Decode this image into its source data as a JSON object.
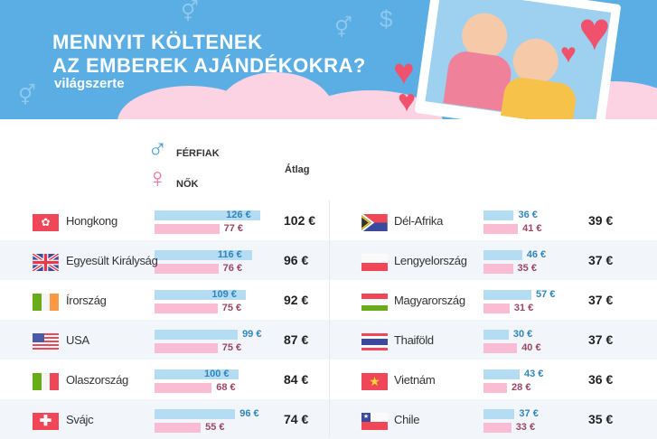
{
  "header": {
    "title_line1": "MENNYIT KÖLTENEK",
    "title_line2": "AZ EMBEREK AJÁNDÉKOKRA?",
    "subtitle": "világszerte"
  },
  "legend": {
    "male": "FÉRFIAK",
    "female": "NŐK",
    "average": "Átlag",
    "male_symbol": "♂",
    "female_symbol": "♀"
  },
  "colors": {
    "male": "#b4dcf2",
    "female": "#f9bcd2",
    "banner": "#5aaee4"
  },
  "chart_data": {
    "type": "bar",
    "title": "MENNYIT KÖLTENEK AZ EMBEREK AJÁNDÉKOKRA? világszerte",
    "unit": "€",
    "series_names": [
      "FÉRFIAK",
      "NŐK",
      "Átlag"
    ],
    "rows": [
      {
        "country": "Hongkong",
        "flag": "hk",
        "male": 126,
        "female": 77,
        "avg": 102,
        "male_label": "126 €",
        "female_label": "77 €",
        "avg_label": "102 €"
      },
      {
        "country": "Egyesült Királyság",
        "flag": "uk",
        "male": 116,
        "female": 76,
        "avg": 96,
        "male_label": "116 €",
        "female_label": "76 €",
        "avg_label": "96 €"
      },
      {
        "country": "Írország",
        "flag": "ie",
        "male": 109,
        "female": 75,
        "avg": 92,
        "male_label": "109 €",
        "female_label": "75 €",
        "avg_label": "92 €"
      },
      {
        "country": "USA",
        "flag": "us",
        "male": 99,
        "female": 75,
        "avg": 87,
        "male_label": "99 €",
        "female_label": "75 €",
        "avg_label": "87 €"
      },
      {
        "country": "Olaszország",
        "flag": "it",
        "male": 100,
        "female": 68,
        "avg": 84,
        "male_label": "100 €",
        "female_label": "68 €",
        "avg_label": "84 €"
      },
      {
        "country": "Svájc",
        "flag": "ch",
        "male": 96,
        "female": 55,
        "avg": 74,
        "male_label": "96 €",
        "female_label": "55 €",
        "avg_label": "74 €"
      },
      {
        "country": "Dél-Afrika",
        "flag": "za",
        "male": 36,
        "female": 41,
        "avg": 39,
        "male_label": "36 €",
        "female_label": "41 €",
        "avg_label": "39 €"
      },
      {
        "country": "Lengyelország",
        "flag": "pl",
        "male": 46,
        "female": 35,
        "avg": 37,
        "male_label": "46 €",
        "female_label": "35 €",
        "avg_label": "37 €"
      },
      {
        "country": "Magyarország",
        "flag": "hu",
        "male": 57,
        "female": 31,
        "avg": 37,
        "male_label": "57 €",
        "female_label": "31 €",
        "avg_label": "37 €"
      },
      {
        "country": "Thaiföld",
        "flag": "th",
        "male": 30,
        "female": 40,
        "avg": 37,
        "male_label": "30 €",
        "female_label": "40 €",
        "avg_label": "37 €"
      },
      {
        "country": "Vietnám",
        "flag": "vn",
        "male": 43,
        "female": 28,
        "avg": 36,
        "male_label": "43 €",
        "female_label": "28 €",
        "avg_label": "36 €"
      },
      {
        "country": "Chile",
        "flag": "cl",
        "male": 37,
        "female": 33,
        "avg": 35,
        "male_label": "37 €",
        "female_label": "33 €",
        "avg_label": "35 €"
      }
    ]
  }
}
